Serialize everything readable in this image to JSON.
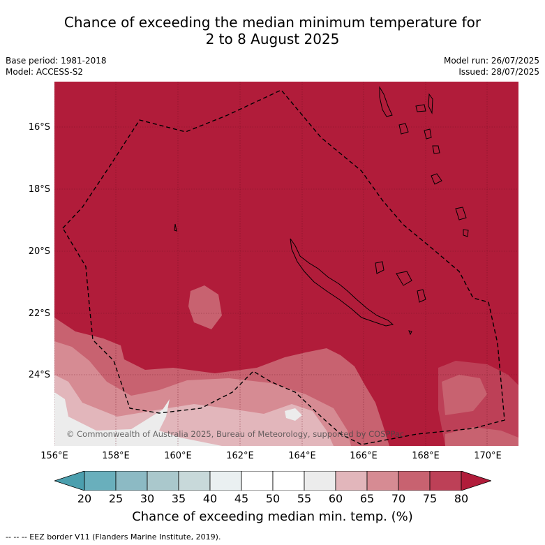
{
  "title": {
    "line1": "Chance of exceeding the median minimum temperature for",
    "line2": "2 to 8 August 2025"
  },
  "meta": {
    "base_period": "Base period: 1981-2018",
    "model": "Model: ACCESS-S2",
    "model_run": "Model run: 26/07/2025",
    "issued": "Issued: 28/07/2025"
  },
  "map": {
    "lat_labels": [
      "16°S",
      "18°S",
      "20°S",
      "22°S",
      "24°S"
    ],
    "lon_labels": [
      "156°E",
      "158°E",
      "160°E",
      "162°E",
      "164°E",
      "166°E",
      "168°E",
      "170°E"
    ],
    "copyright": "© Commonwealth of Australia 2025, Bureau of Meteorology, supported by COSPPac",
    "background_color": "#b11c3a"
  },
  "colorbar": {
    "ticks": [
      "20",
      "25",
      "30",
      "35",
      "40",
      "45",
      "50",
      "55",
      "60",
      "65",
      "70",
      "75",
      "80"
    ],
    "colors": [
      "#4b9fae",
      "#69afbc",
      "#8cbac4",
      "#aac8cc",
      "#c8d9da",
      "#eaf0f1",
      "#ffffff",
      "#ffffff",
      "#ececec",
      "#e2b6bb",
      "#d68b93",
      "#c86270",
      "#bd4057",
      "#b11c3a"
    ],
    "title": "Chance of exceeding median min. temp. (%)"
  },
  "footnote": "--  --  -- EEZ border V11 (Flanders Marine Institute, 2019)."
}
